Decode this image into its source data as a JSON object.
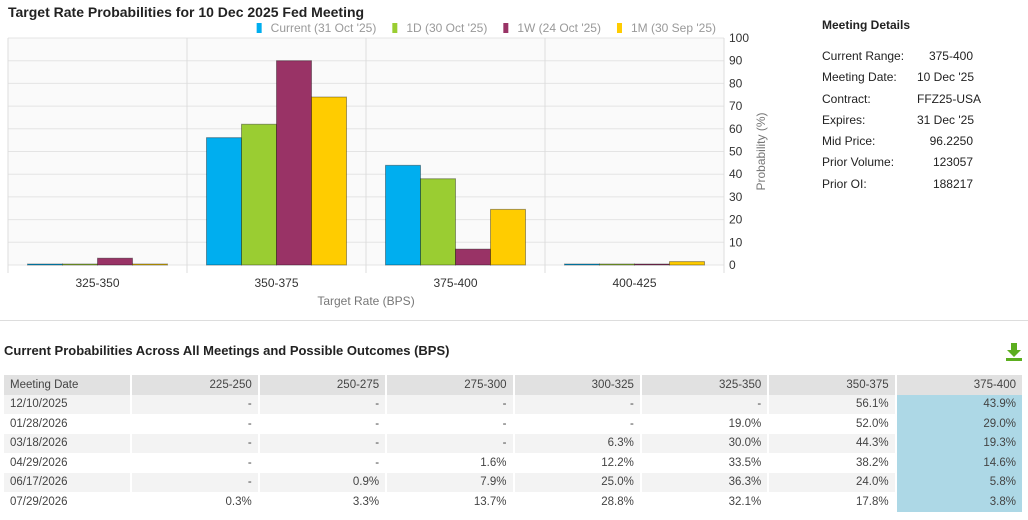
{
  "chart_data": {
    "type": "bar",
    "title": "Target Rate Probabilities for 10 Dec 2025 Fed Meeting",
    "xlabel": "Target Rate (BPS)",
    "ylabel": "Probability (%)",
    "ylim": [
      0,
      100
    ],
    "yticks": [
      "0",
      "10",
      "20",
      "30",
      "40",
      "50",
      "60",
      "70",
      "80",
      "90",
      "100"
    ],
    "categories": [
      "325-350",
      "350-375",
      "375-400",
      "400-425"
    ],
    "legend_position": "top-right",
    "series": [
      {
        "name": "Current (31 Oct '25)",
        "color": "#00aeef",
        "values": [
          0,
          56.1,
          43.9,
          0
        ]
      },
      {
        "name": "1D (30 Oct '25)",
        "color": "#9acd32",
        "values": [
          0,
          62,
          38,
          0
        ]
      },
      {
        "name": "1W (24 Oct '25)",
        "color": "#993366",
        "values": [
          3,
          90,
          7,
          0
        ]
      },
      {
        "name": "1M (30 Sep '25)",
        "color": "#ffcc00",
        "values": [
          0.3,
          74,
          24.5,
          1.5
        ]
      }
    ]
  },
  "details": {
    "title": "Meeting Details",
    "rows": [
      {
        "k": "Current Range:",
        "v": "375-400"
      },
      {
        "k": "Meeting Date:",
        "v": "10 Dec '25"
      },
      {
        "k": "Contract:",
        "v": "FFZ25-USA"
      },
      {
        "k": "Expires:",
        "v": "31 Dec '25"
      },
      {
        "k": "Mid Price:",
        "v": "96.2250"
      },
      {
        "k": "Prior Volume:",
        "v": "123057"
      },
      {
        "k": "Prior OI:",
        "v": "188217"
      }
    ]
  },
  "table": {
    "title": "Current Probabilities Across All Meetings and Possible Outcomes (BPS)",
    "headers": [
      "Meeting Date",
      "225-250",
      "250-275",
      "275-300",
      "300-325",
      "325-350",
      "350-375",
      "375-400"
    ],
    "rows": [
      [
        "12/10/2025",
        "-",
        "-",
        "-",
        "-",
        "-",
        "56.1%",
        "43.9%"
      ],
      [
        "01/28/2026",
        "-",
        "-",
        "-",
        "-",
        "19.0%",
        "52.0%",
        "29.0%"
      ],
      [
        "03/18/2026",
        "-",
        "-",
        "-",
        "6.3%",
        "30.0%",
        "44.3%",
        "19.3%"
      ],
      [
        "04/29/2026",
        "-",
        "-",
        "1.6%",
        "12.2%",
        "33.5%",
        "38.2%",
        "14.6%"
      ],
      [
        "06/17/2026",
        "-",
        "0.9%",
        "7.9%",
        "25.0%",
        "36.3%",
        "24.0%",
        "5.8%"
      ],
      [
        "07/29/2026",
        "0.3%",
        "3.3%",
        "13.7%",
        "28.8%",
        "32.1%",
        "17.8%",
        "3.8%"
      ]
    ]
  }
}
